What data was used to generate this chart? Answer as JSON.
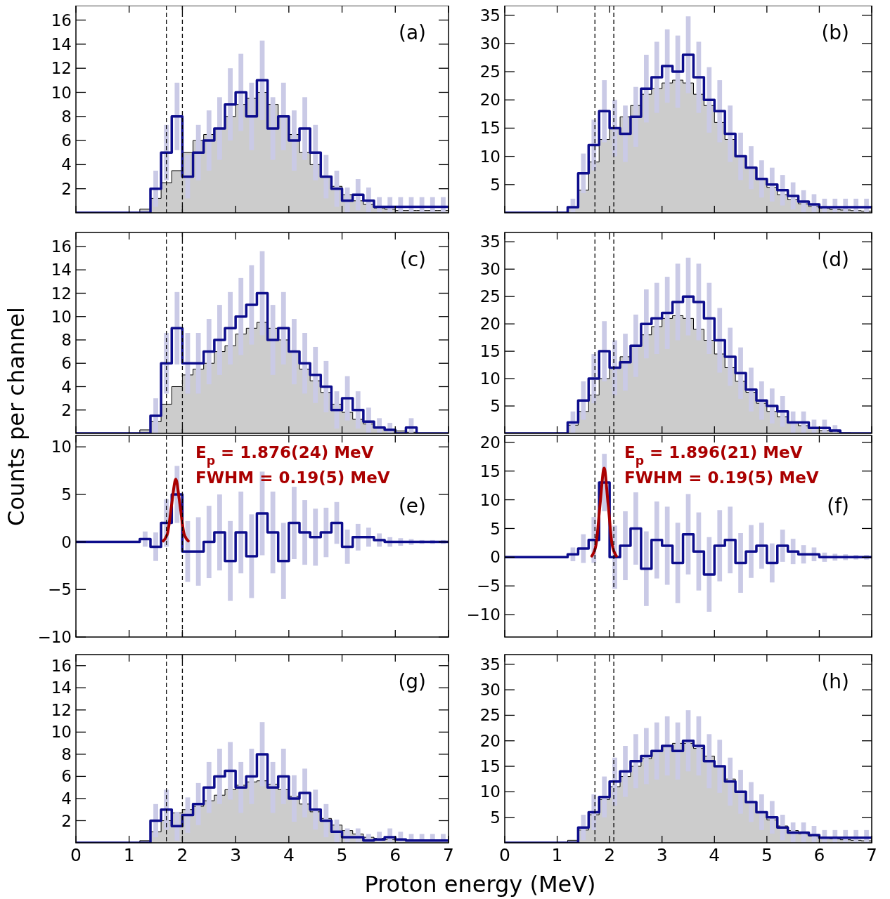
{
  "chart_data": [
    {
      "type": "histogram",
      "bins": [
        0,
        0.2,
        0.4,
        0.6,
        0.8,
        1,
        1.2,
        1.4,
        1.6,
        1.8,
        2,
        2.2,
        2.4,
        2.6,
        2.8,
        3,
        3.2,
        3.4,
        3.6,
        3.8,
        4,
        4.2,
        4.4,
        4.6,
        4.8,
        5,
        5.2,
        5.4,
        5.6,
        5.8,
        6,
        6.2,
        6.4,
        6.6,
        6.8,
        7
      ],
      "xlim": [
        0,
        7
      ],
      "xticks": [
        0,
        1,
        2,
        3,
        4,
        5,
        6,
        7
      ],
      "ylim": [
        0,
        17.2
      ],
      "yticks": [
        2,
        4,
        6,
        8,
        10,
        12,
        14,
        16
      ],
      "tick_labels": "y",
      "series": [
        {
          "color": "#cccccc",
          "values": [
            0,
            0,
            0,
            0,
            0,
            0,
            0.3,
            1.2,
            2.5,
            3.5,
            5,
            6,
            6.5,
            7,
            8,
            9,
            9.5,
            10,
            9,
            8,
            6.5,
            5,
            4,
            3,
            2.2,
            1.5,
            1,
            0.7,
            0.4,
            0.3,
            0.2,
            0.2,
            0.2,
            0.2,
            0.2
          ]
        },
        {
          "type": "step",
          "color": "#0d0d8c",
          "x": [
            0.1,
            0.3,
            0.5,
            0.7,
            0.9,
            1.1,
            1.3,
            1.5,
            1.7,
            1.9,
            2.1,
            2.3,
            2.5,
            2.7,
            2.9,
            3.1,
            3.3,
            3.5,
            3.7,
            3.9,
            4.1,
            4.3,
            4.5,
            4.7,
            4.9,
            5.1,
            5.3,
            5.5,
            5.7,
            5.9,
            6.1,
            6.3,
            6.5,
            6.7,
            6.9
          ],
          "values": [
            0,
            0,
            0,
            0,
            0,
            0,
            0,
            2,
            5,
            8,
            3,
            5,
            6,
            7,
            9,
            10,
            8,
            11,
            7,
            8,
            6,
            7,
            5,
            3,
            2,
            1,
            1.5,
            1,
            0.5,
            0.5,
            0.5,
            0.5,
            0.5,
            0.5,
            0.5
          ],
          "errors": [
            null,
            null,
            null,
            null,
            null,
            null,
            null,
            1.5,
            2.3,
            2.8,
            1.8,
            2.3,
            2.5,
            2.6,
            3,
            3.2,
            2.8,
            3.3,
            2.6,
            2.8,
            2.5,
            2.6,
            2.3,
            1.8,
            1.5,
            1.1,
            1.3,
            1.1,
            0.8,
            0.8,
            0.8,
            0.8,
            0.8,
            0.8,
            0.8
          ]
        }
      ],
      "ref_lines": [
        {
          "axis": "x",
          "value": 1.7,
          "color": "#000000",
          "line_style": "dashed"
        },
        {
          "axis": "x",
          "value": 2,
          "color": "#000000",
          "line_style": "dashed"
        }
      ],
      "annotations": [
        "(a)"
      ]
    },
    {
      "type": "histogram",
      "bins": [
        0,
        0.2,
        0.4,
        0.6,
        0.8,
        1,
        1.2,
        1.4,
        1.6,
        1.8,
        2,
        2.2,
        2.4,
        2.6,
        2.8,
        3,
        3.2,
        3.4,
        3.6,
        3.8,
        4,
        4.2,
        4.4,
        4.6,
        4.8,
        5,
        5.2,
        5.4,
        5.6,
        5.8,
        6,
        6.2,
        6.4,
        6.6,
        6.8,
        7
      ],
      "xlim": [
        0,
        7
      ],
      "xticks": [
        0,
        1,
        2,
        3,
        4,
        5,
        6,
        7
      ],
      "ylim": [
        0,
        36.7
      ],
      "yticks": [
        5,
        10,
        15,
        20,
        25,
        30,
        35
      ],
      "tick_labels": "y",
      "series": [
        {
          "color": "#cccccc",
          "values": [
            0,
            0,
            0,
            0,
            0,
            0,
            1,
            4,
            9,
            13,
            15,
            17,
            19,
            21,
            22,
            23,
            23.5,
            23,
            21,
            19,
            16,
            13,
            10,
            8,
            6,
            4.5,
            3.2,
            2.3,
            1.6,
            1.1,
            0.8,
            0.6,
            0.5,
            0.4,
            0.3
          ]
        },
        {
          "type": "step",
          "color": "#0d0d8c",
          "x": [
            0.1,
            0.3,
            0.5,
            0.7,
            0.9,
            1.1,
            1.3,
            1.5,
            1.7,
            1.9,
            2.1,
            2.3,
            2.5,
            2.7,
            2.9,
            3.1,
            3.3,
            3.5,
            3.7,
            3.9,
            4.1,
            4.3,
            4.5,
            4.7,
            4.9,
            5.1,
            5.3,
            5.5,
            5.7,
            5.9,
            6.1,
            6.3,
            6.5,
            6.7,
            6.9
          ],
          "values": [
            0,
            0,
            0,
            0,
            0,
            0,
            1,
            7,
            12,
            18,
            15,
            14,
            17,
            22,
            24,
            26,
            25,
            28,
            24,
            20,
            18,
            14,
            10,
            8,
            6,
            5,
            4,
            3,
            2,
            1.5,
            1,
            1,
            1,
            1,
            1
          ],
          "errors": [
            null,
            null,
            null,
            null,
            null,
            null,
            1.5,
            3.5,
            4.5,
            5.5,
            5,
            5,
            5.3,
            6,
            6.3,
            6.5,
            6.4,
            6.8,
            6.3,
            5.8,
            5.5,
            5,
            4.2,
            3.8,
            3.3,
            3,
            2.7,
            2.4,
            2,
            1.8,
            1.5,
            1.5,
            1.5,
            1.5,
            1.5
          ]
        }
      ],
      "ref_lines": [
        {
          "axis": "x",
          "value": 1.72,
          "color": "#000000",
          "line_style": "dashed"
        },
        {
          "axis": "x",
          "value": 2.08,
          "color": "#000000",
          "line_style": "dashed"
        }
      ],
      "annotations": [
        "(b)"
      ]
    },
    {
      "type": "histogram",
      "bins": [
        0,
        0.2,
        0.4,
        0.6,
        0.8,
        1,
        1.2,
        1.4,
        1.6,
        1.8,
        2,
        2.2,
        2.4,
        2.6,
        2.8,
        3,
        3.2,
        3.4,
        3.6,
        3.8,
        4,
        4.2,
        4.4,
        4.6,
        4.8,
        5,
        5.2,
        5.4,
        5.6,
        5.8,
        6,
        6.2,
        6.4,
        6.6,
        6.8,
        7
      ],
      "xlim": [
        0,
        7
      ],
      "xticks": [
        0,
        1,
        2,
        3,
        4,
        5,
        6,
        7
      ],
      "ylim": [
        0,
        17.2
      ],
      "yticks": [
        2,
        4,
        6,
        8,
        10,
        12,
        14,
        16
      ],
      "tick_labels": "y",
      "ylabel": "Counts per channel",
      "series": [
        {
          "color": "#cccccc",
          "values": [
            0,
            0,
            0,
            0,
            0,
            0,
            0.3,
            1,
            2.5,
            4,
            5,
            5.5,
            6,
            7,
            7.5,
            8.5,
            9,
            9.5,
            9,
            8,
            7,
            5.5,
            4.5,
            3.5,
            2.5,
            1.8,
            1.2,
            0.8,
            0.5,
            0.3,
            0.2,
            0.1,
            0,
            0,
            0
          ]
        },
        {
          "type": "step",
          "color": "#0d0d8c",
          "x": [
            0.1,
            0.3,
            0.5,
            0.7,
            0.9,
            1.1,
            1.3,
            1.5,
            1.7,
            1.9,
            2.1,
            2.3,
            2.5,
            2.7,
            2.9,
            3.1,
            3.3,
            3.5,
            3.7,
            3.9,
            4.1,
            4.3,
            4.5,
            4.7,
            4.9,
            5.1,
            5.3,
            5.5,
            5.7,
            5.9,
            6.1,
            6.3,
            6.5,
            6.7,
            6.9
          ],
          "values": [
            0,
            0,
            0,
            0,
            0,
            0,
            0,
            1.5,
            6,
            9,
            6,
            6,
            7,
            8,
            9,
            10,
            11,
            12,
            8,
            9,
            7,
            6,
            5,
            4,
            2,
            3,
            2,
            1,
            0.5,
            0.3,
            0,
            0.5,
            0,
            0,
            0
          ],
          "errors": [
            null,
            null,
            null,
            null,
            null,
            null,
            null,
            1.5,
            2.6,
            3.1,
            2.6,
            2.6,
            2.8,
            3,
            3.1,
            3.3,
            3.4,
            3.6,
            3,
            3.1,
            2.8,
            2.6,
            2.4,
            2.2,
            1.6,
            1.9,
            1.6,
            1.2,
            0.8,
            0.6,
            null,
            0.8,
            null,
            null,
            null
          ]
        }
      ],
      "ref_lines": [
        {
          "axis": "x",
          "value": 1.7,
          "color": "#000000",
          "line_style": "dashed"
        },
        {
          "axis": "x",
          "value": 2,
          "color": "#000000",
          "line_style": "dashed"
        }
      ],
      "annotations": [
        "(c)"
      ]
    },
    {
      "type": "histogram",
      "bins": [
        0,
        0.2,
        0.4,
        0.6,
        0.8,
        1,
        1.2,
        1.4,
        1.6,
        1.8,
        2,
        2.2,
        2.4,
        2.6,
        2.8,
        3,
        3.2,
        3.4,
        3.6,
        3.8,
        4,
        4.2,
        4.4,
        4.6,
        4.8,
        5,
        5.2,
        5.4,
        5.6,
        5.8,
        6,
        6.2,
        6.4,
        6.6,
        6.8,
        7
      ],
      "xlim": [
        0,
        7
      ],
      "xticks": [
        0,
        1,
        2,
        3,
        4,
        5,
        6,
        7
      ],
      "ylim": [
        0,
        36.7
      ],
      "yticks": [
        5,
        10,
        15,
        20,
        25,
        30,
        35
      ],
      "tick_labels": "y",
      "series": [
        {
          "color": "#cccccc",
          "values": [
            0,
            0,
            0,
            0,
            0,
            0,
            1.5,
            4,
            7,
            10,
            12,
            14,
            16,
            18,
            19.5,
            21,
            21.5,
            21,
            19,
            17,
            14.5,
            12,
            9.5,
            7.5,
            5.5,
            4,
            3,
            2,
            1.4,
            0.9,
            0.5,
            0.3,
            0.1,
            0,
            0
          ]
        },
        {
          "type": "step",
          "color": "#0d0d8c",
          "x": [
            0.1,
            0.3,
            0.5,
            0.7,
            0.9,
            1.1,
            1.3,
            1.5,
            1.7,
            1.9,
            2.1,
            2.3,
            2.5,
            2.7,
            2.9,
            3.1,
            3.3,
            3.5,
            3.7,
            3.9,
            4.1,
            4.3,
            4.5,
            4.7,
            4.9,
            5.1,
            5.3,
            5.5,
            5.7,
            5.9,
            6.1,
            6.3,
            6.5,
            6.7,
            6.9
          ],
          "values": [
            0,
            0,
            0,
            0,
            0,
            0,
            2,
            6,
            10,
            15,
            12,
            13,
            16,
            20,
            21,
            22,
            24,
            25,
            24,
            21,
            17,
            14,
            11,
            8,
            6,
            5,
            4,
            2,
            2,
            1,
            1,
            0.5,
            0,
            0,
            0
          ],
          "errors": [
            null,
            null,
            null,
            null,
            null,
            null,
            2,
            3.5,
            4.5,
            5.5,
            5,
            5.2,
            5.7,
            6.3,
            6.5,
            6.6,
            7,
            7.1,
            7,
            6.5,
            5.9,
            5.3,
            4.7,
            4,
            3.5,
            3.2,
            2.8,
            2,
            2,
            1.5,
            1.5,
            1,
            null,
            null,
            null
          ]
        }
      ],
      "ref_lines": [
        {
          "axis": "x",
          "value": 1.72,
          "color": "#000000",
          "line_style": "dashed"
        },
        {
          "axis": "x",
          "value": 2.08,
          "color": "#000000",
          "line_style": "dashed"
        }
      ],
      "annotations": [
        "(d)"
      ]
    },
    {
      "type": "step",
      "xlim": [
        0,
        7
      ],
      "xticks": [
        0,
        1,
        2,
        3,
        4,
        5,
        6,
        7
      ],
      "ylim": [
        -10,
        11.2
      ],
      "yticks": [
        -10,
        -5,
        0,
        5,
        10
      ],
      "tick_labels": "y",
      "series": [
        {
          "color": "#0d0d8c",
          "x": [
            0.1,
            0.3,
            0.5,
            0.7,
            0.9,
            1.1,
            1.3,
            1.5,
            1.7,
            1.9,
            2.1,
            2.3,
            2.5,
            2.7,
            2.9,
            3.1,
            3.3,
            3.5,
            3.7,
            3.9,
            4.1,
            4.3,
            4.5,
            4.7,
            4.9,
            5.1,
            5.3,
            5.5,
            5.7,
            5.9,
            6.1,
            6.3,
            6.5,
            6.7,
            6.9
          ],
          "values": [
            0,
            0,
            0,
            0,
            0,
            0,
            0.3,
            -0.5,
            2,
            5,
            -1,
            -1,
            0,
            1,
            -2,
            1,
            -1.5,
            3,
            1,
            -2,
            2,
            1,
            0.5,
            1,
            2,
            -0.5,
            0.5,
            0.5,
            0.2,
            0,
            0,
            0,
            0,
            0,
            0
          ],
          "errors": [
            null,
            null,
            null,
            null,
            null,
            null,
            0.8,
            1.5,
            2.5,
            3,
            3.2,
            3.6,
            3.8,
            4,
            4.2,
            4.3,
            4.4,
            4.4,
            4.3,
            4,
            3.8,
            3.4,
            3,
            2.6,
            2.2,
            1.8,
            1.4,
            1,
            0.7,
            0.5,
            0.4,
            0.3,
            0.2,
            0.2,
            0.2
          ]
        },
        {
          "type": "line",
          "color": "#aa0000",
          "x": [
            1.64,
            1.72,
            1.8,
            1.876,
            1.95,
            2.03,
            2.11
          ],
          "values": [
            0.1,
            0.9,
            4,
            6.6,
            4.1,
            0.9,
            0.1
          ]
        }
      ],
      "ref_lines": [
        {
          "axis": "x",
          "value": 1.7,
          "color": "#000000",
          "line_style": "dashed"
        },
        {
          "axis": "x",
          "value": 2,
          "color": "#000000",
          "line_style": "dashed"
        }
      ],
      "annotations": [
        "(e)",
        "E$_{p}$ = 1.876(24) MeV",
        "FWHM = 0.19(5) MeV"
      ]
    },
    {
      "type": "step",
      "xlim": [
        0,
        7
      ],
      "xticks": [
        0,
        1,
        2,
        3,
        4,
        5,
        6,
        7
      ],
      "ylim": [
        -13.9,
        21.2
      ],
      "yticks": [
        -10,
        -5,
        0,
        5,
        10,
        15,
        20
      ],
      "tick_labels": "y",
      "series": [
        {
          "color": "#0d0d8c",
          "x": [
            0.1,
            0.3,
            0.5,
            0.7,
            0.9,
            1.1,
            1.3,
            1.5,
            1.7,
            1.9,
            2.1,
            2.3,
            2.5,
            2.7,
            2.9,
            3.1,
            3.3,
            3.5,
            3.7,
            3.9,
            4.1,
            4.3,
            4.5,
            4.7,
            4.9,
            5.1,
            5.3,
            5.5,
            5.7,
            5.9,
            6.1,
            6.3,
            6.5,
            6.7,
            6.9
          ],
          "values": [
            0,
            0,
            0,
            0,
            0,
            0,
            0.5,
            1.5,
            3,
            13,
            0,
            2,
            5,
            -2,
            3,
            2,
            -1,
            4,
            1,
            -3,
            2,
            3,
            -1,
            1,
            2,
            -1,
            2,
            1,
            0.5,
            0.5,
            0,
            0,
            0,
            0,
            0
          ],
          "errors": [
            null,
            null,
            null,
            null,
            null,
            null,
            1.2,
            2.5,
            4,
            5,
            5.5,
            6,
            6.3,
            6.5,
            6.7,
            6.8,
            7,
            7,
            6.8,
            6.5,
            6.2,
            5.8,
            5.2,
            4.6,
            4,
            3.4,
            2.8,
            2.2,
            1.6,
            1.2,
            0.8,
            0.6,
            0.5,
            0.4,
            0.4
          ]
        },
        {
          "type": "line",
          "color": "#aa0000",
          "x": [
            1.66,
            1.74,
            1.82,
            1.896,
            1.97,
            2.05,
            2.13
          ],
          "values": [
            0.2,
            2.1,
            9.4,
            15.5,
            9.4,
            2.1,
            0.2
          ]
        }
      ],
      "ref_lines": [
        {
          "axis": "x",
          "value": 1.72,
          "color": "#000000",
          "line_style": "dashed"
        },
        {
          "axis": "x",
          "value": 2.08,
          "color": "#000000",
          "line_style": "dashed"
        }
      ],
      "annotations": [
        "(f)",
        "E$_{p}$ = 1.896(21) MeV",
        "FWHM = 0.19(5) MeV"
      ]
    },
    {
      "type": "histogram",
      "bins": [
        0,
        0.2,
        0.4,
        0.6,
        0.8,
        1,
        1.2,
        1.4,
        1.6,
        1.8,
        2,
        2.2,
        2.4,
        2.6,
        2.8,
        3,
        3.2,
        3.4,
        3.6,
        3.8,
        4,
        4.2,
        4.4,
        4.6,
        4.8,
        5,
        5.2,
        5.4,
        5.6,
        5.8,
        6,
        6.2,
        6.4,
        6.6,
        6.8,
        7
      ],
      "xlim": [
        0,
        7
      ],
      "xticks": [
        0,
        1,
        2,
        3,
        4,
        5,
        6,
        7
      ],
      "ylim": [
        0,
        17
      ],
      "yticks": [
        2,
        4,
        6,
        8,
        10,
        12,
        14,
        16
      ],
      "xlabel": "Proton energy (MeV)",
      "series": [
        {
          "color": "#cccccc",
          "values": [
            0,
            0,
            0,
            0,
            0,
            0,
            0.2,
            1,
            2,
            2.7,
            3,
            3.3,
            3.8,
            4.3,
            4.8,
            5.2,
            5.5,
            5.6,
            5.3,
            4.8,
            4.2,
            3.5,
            2.8,
            2.2,
            1.6,
            1.1,
            0.8,
            0.5,
            0.4,
            0.3,
            0.25,
            0.2,
            0.2,
            0.2,
            0.2
          ]
        },
        {
          "type": "step",
          "color": "#0d0d8c",
          "x": [
            0.1,
            0.3,
            0.5,
            0.7,
            0.9,
            1.1,
            1.3,
            1.5,
            1.7,
            1.9,
            2.1,
            2.3,
            2.5,
            2.7,
            2.9,
            3.1,
            3.3,
            3.5,
            3.7,
            3.9,
            4.1,
            4.3,
            4.5,
            4.7,
            4.9,
            5.1,
            5.3,
            5.5,
            5.7,
            5.9,
            6.1,
            6.3,
            6.5,
            6.7,
            6.9
          ],
          "values": [
            0,
            0,
            0,
            0,
            0,
            0,
            0,
            2,
            3,
            1.5,
            2.5,
            3.5,
            5,
            6,
            6.5,
            5,
            6,
            8,
            5,
            6,
            4,
            4.5,
            3,
            2,
            1,
            0.5,
            0.5,
            0.2,
            0.3,
            0.5,
            0.3,
            0.2,
            0.2,
            0.2,
            0.2
          ],
          "errors": [
            null,
            null,
            null,
            null,
            null,
            null,
            null,
            1.5,
            1.8,
            1.3,
            1.6,
            1.9,
            2.3,
            2.5,
            2.6,
            2.3,
            2.5,
            2.9,
            2.3,
            2.5,
            2.1,
            2.2,
            1.8,
            1.5,
            1.1,
            0.8,
            0.8,
            0.6,
            0.7,
            0.8,
            0.7,
            0.6,
            0.6,
            0.6,
            0.6
          ]
        }
      ],
      "ref_lines": [
        {
          "axis": "x",
          "value": 1.7,
          "color": "#000000",
          "line_style": "dashed"
        },
        {
          "axis": "x",
          "value": 2,
          "color": "#000000",
          "line_style": "dashed"
        }
      ],
      "annotations": [
        "(g)"
      ]
    },
    {
      "type": "histogram",
      "bins": [
        0,
        0.2,
        0.4,
        0.6,
        0.8,
        1,
        1.2,
        1.4,
        1.6,
        1.8,
        2,
        2.2,
        2.4,
        2.6,
        2.8,
        3,
        3.2,
        3.4,
        3.6,
        3.8,
        4,
        4.2,
        4.4,
        4.6,
        4.8,
        5,
        5.2,
        5.4,
        5.6,
        5.8,
        6,
        6.2,
        6.4,
        6.6,
        6.8,
        7
      ],
      "xlim": [
        0,
        7
      ],
      "xticks": [
        0,
        1,
        2,
        3,
        4,
        5,
        6,
        7
      ],
      "ylim": [
        0,
        36.9
      ],
      "yticks": [
        5,
        10,
        15,
        20,
        25,
        30,
        35
      ],
      "series": [
        {
          "color": "#cccccc",
          "values": [
            0,
            0,
            0,
            0,
            0,
            0,
            0.5,
            2.5,
            5.5,
            8.5,
            11,
            13,
            15,
            16.5,
            18,
            19,
            19.5,
            19.5,
            18.5,
            17,
            15,
            12.5,
            10,
            8,
            6,
            4.5,
            3.3,
            2.4,
            1.8,
            1.3,
            1,
            0.8,
            0.6,
            0.5,
            0.4
          ]
        },
        {
          "type": "step",
          "color": "#0d0d8c",
          "x": [
            0.1,
            0.3,
            0.5,
            0.7,
            0.9,
            1.1,
            1.3,
            1.5,
            1.7,
            1.9,
            2.1,
            2.3,
            2.5,
            2.7,
            2.9,
            3.1,
            3.3,
            3.5,
            3.7,
            3.9,
            4.1,
            4.3,
            4.5,
            4.7,
            4.9,
            5.1,
            5.3,
            5.5,
            5.7,
            5.9,
            6.1,
            6.3,
            6.5,
            6.7,
            6.9
          ],
          "values": [
            0,
            0,
            0,
            0,
            0,
            0,
            0,
            3,
            6,
            9,
            12,
            14,
            16,
            17,
            18,
            19,
            18,
            20,
            19,
            16,
            15,
            12,
            10,
            8,
            6,
            5,
            3,
            2,
            2,
            1.5,
            1,
            1,
            1,
            1,
            1
          ],
          "errors": [
            null,
            null,
            null,
            null,
            null,
            null,
            null,
            2.5,
            3.5,
            4,
            4.7,
            5,
            5.3,
            5.5,
            5.6,
            5.8,
            5.6,
            6,
            5.8,
            5.3,
            5.2,
            4.7,
            4.3,
            3.9,
            3.5,
            3.2,
            2.5,
            2,
            2,
            1.8,
            1.5,
            1.5,
            1.5,
            1.5,
            1.5
          ]
        }
      ],
      "ref_lines": [
        {
          "axis": "x",
          "value": 1.72,
          "color": "#000000",
          "line_style": "dashed"
        },
        {
          "axis": "x",
          "value": 2.08,
          "color": "#000000",
          "line_style": "dashed"
        }
      ],
      "annotations": [
        "(h)"
      ]
    }
  ]
}
